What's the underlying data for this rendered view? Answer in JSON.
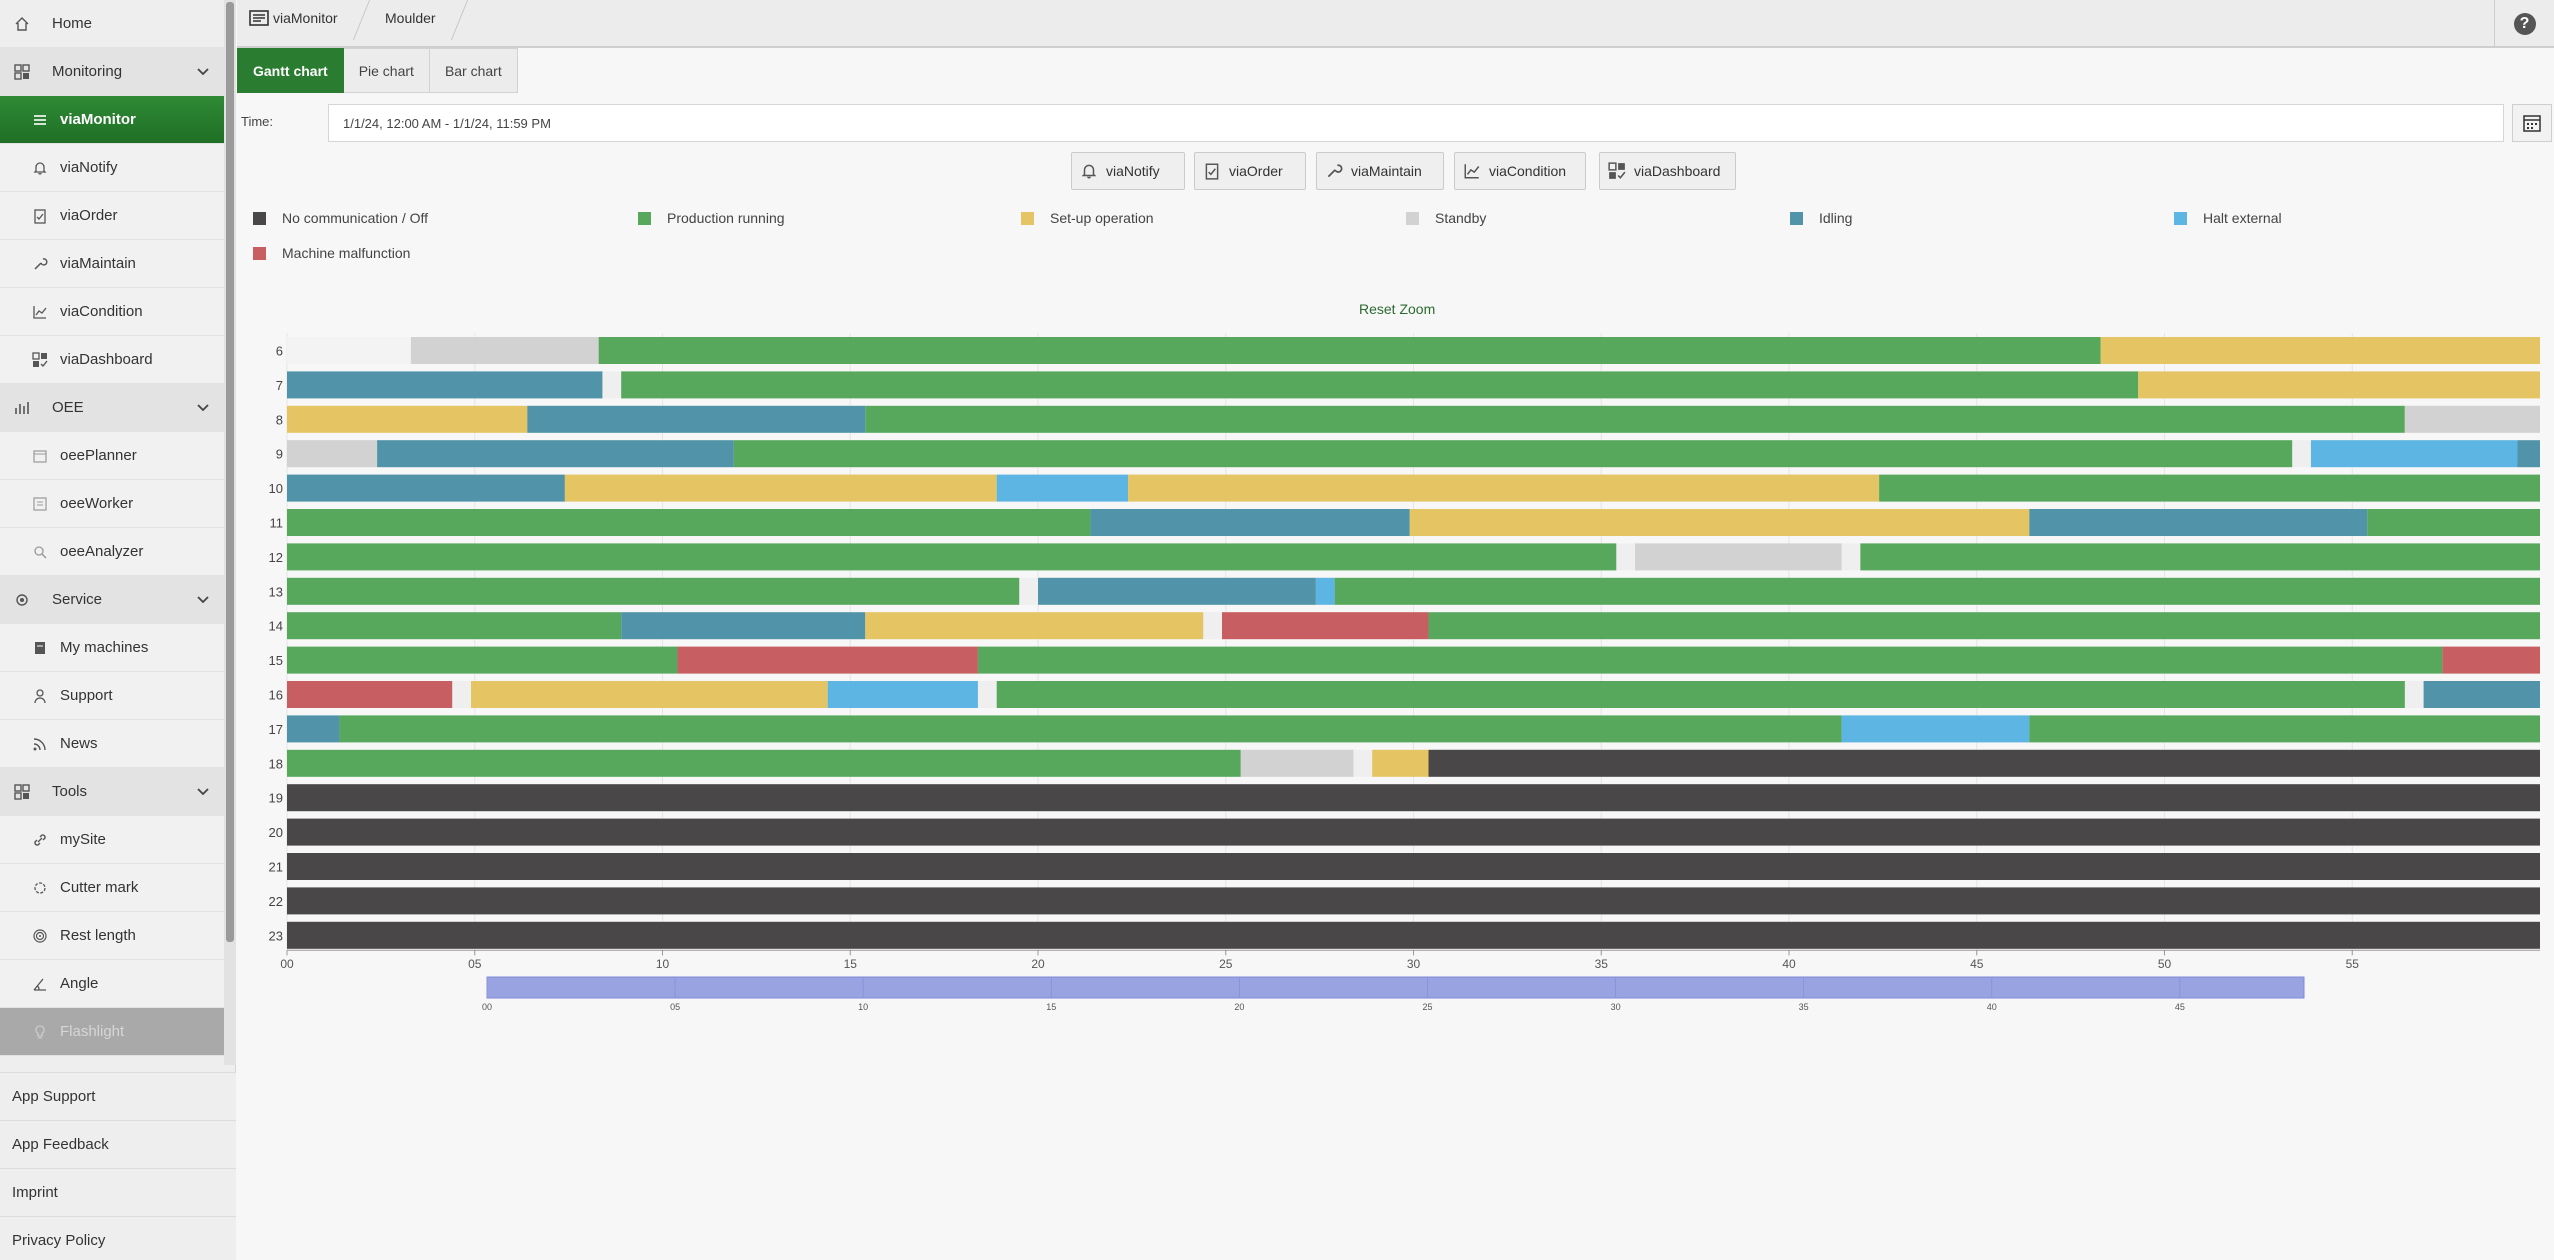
{
  "sidebar": {
    "items": [
      {
        "label": "Home",
        "type": "top",
        "icon": "home-icon"
      },
      {
        "label": "Monitoring",
        "type": "group",
        "icon": "monitoring-icon"
      },
      {
        "label": "viaMonitor",
        "type": "active",
        "icon": "list-icon"
      },
      {
        "label": "viaNotify",
        "type": "sub",
        "icon": "bell-icon"
      },
      {
        "label": "viaOrder",
        "type": "sub",
        "icon": "clipboard-icon"
      },
      {
        "label": "viaMaintain",
        "type": "sub",
        "icon": "wrench-icon"
      },
      {
        "label": "viaCondition",
        "type": "sub",
        "icon": "line-chart-icon"
      },
      {
        "label": "viaDashboard",
        "type": "sub",
        "icon": "dashboard-icon"
      },
      {
        "label": "OEE",
        "type": "group",
        "icon": "oee-icon"
      },
      {
        "label": "oeePlanner",
        "type": "sub",
        "icon": "planner-icon"
      },
      {
        "label": "oeeWorker",
        "type": "sub",
        "icon": "worker-icon"
      },
      {
        "label": "oeeAnalyzer",
        "type": "sub",
        "icon": "analyzer-icon"
      },
      {
        "label": "Service",
        "type": "group",
        "icon": "service-icon"
      },
      {
        "label": "My machines",
        "type": "sub",
        "icon": "machine-icon"
      },
      {
        "label": "Support",
        "type": "sub",
        "icon": "person-icon"
      },
      {
        "label": "News",
        "type": "sub",
        "icon": "rss-icon"
      },
      {
        "label": "Tools",
        "type": "group",
        "icon": "tools-icon"
      },
      {
        "label": "mySite",
        "type": "sub",
        "icon": "link-icon"
      },
      {
        "label": "Cutter mark",
        "type": "sub",
        "icon": "cutter-icon"
      },
      {
        "label": "Rest length",
        "type": "sub",
        "icon": "target-icon"
      },
      {
        "label": "Angle",
        "type": "sub",
        "icon": "angle-icon"
      },
      {
        "label": "Flashlight",
        "type": "disabled",
        "icon": "bulb-icon"
      }
    ],
    "bottom": [
      "App Support",
      "App Feedback",
      "Imprint",
      "Privacy Policy"
    ]
  },
  "breadcrumb": {
    "items": [
      "viaMonitor",
      "Moulder"
    ]
  },
  "tabs": [
    "Gantt chart",
    "Pie chart",
    "Bar chart"
  ],
  "time": {
    "label": "Time:",
    "value": "1/1/24, 12:00 AM - 1/1/24, 11:59 PM"
  },
  "app_buttons": [
    {
      "label": "viaNotify",
      "icon": "bell-icon"
    },
    {
      "label": "viaOrder",
      "icon": "clipboard-icon"
    },
    {
      "label": "viaMaintain",
      "icon": "wrench-icon"
    },
    {
      "label": "viaCondition",
      "icon": "line-chart-icon"
    },
    {
      "label": "viaDashboard",
      "icon": "dashboard-icon"
    }
  ],
  "reset_zoom": "Reset Zoom",
  "colors": {
    "off": "#4a4748",
    "running": "#57a85d",
    "setup": "#e5c463",
    "standby": "#d2d2d2",
    "idling": "#5193a8",
    "halt": "#5cb5e2",
    "malfunction": "#c75f62",
    "navigator": "#9aa3e2",
    "accent": "#2a7d30"
  },
  "chart_data": {
    "type": "gantt",
    "legend": [
      {
        "key": "off",
        "label": "No communication / Off"
      },
      {
        "key": "running",
        "label": "Production running"
      },
      {
        "key": "setup",
        "label": "Set-up operation"
      },
      {
        "key": "standby",
        "label": "Standby"
      },
      {
        "key": "idling",
        "label": "Idling"
      },
      {
        "key": "halt",
        "label": "Halt external"
      },
      {
        "key": "malfunction",
        "label": "Machine malfunction"
      }
    ],
    "x_range": [
      0,
      60
    ],
    "x_ticks": [
      "00",
      "05",
      "10",
      "15",
      "20",
      "25",
      "30",
      "35",
      "40",
      "45",
      "50",
      "55"
    ],
    "navigator_range": [
      0,
      48.3
    ],
    "rows": [
      {
        "label": "6",
        "segments": [
          [
            0,
            3.3,
            "blank"
          ],
          [
            3.3,
            8.3,
            "standby"
          ],
          [
            8.3,
            48.3,
            "running"
          ],
          [
            48.3,
            60,
            "setup"
          ]
        ]
      },
      {
        "label": "7",
        "segments": [
          [
            0,
            8.4,
            "idling"
          ],
          [
            8.9,
            49.3,
            "running"
          ],
          [
            49.3,
            60,
            "setup"
          ]
        ]
      },
      {
        "label": "8",
        "segments": [
          [
            0,
            6.4,
            "setup"
          ],
          [
            6.4,
            15.4,
            "idling"
          ],
          [
            15.4,
            56.4,
            "running"
          ],
          [
            56.4,
            60,
            "standby"
          ]
        ]
      },
      {
        "label": "9",
        "segments": [
          [
            0,
            2.4,
            "standby"
          ],
          [
            2.4,
            11.9,
            "idling"
          ],
          [
            11.9,
            53.4,
            "running"
          ],
          [
            53.9,
            59.4,
            "halt"
          ],
          [
            59.4,
            60,
            "idling"
          ]
        ]
      },
      {
        "label": "10",
        "segments": [
          [
            0,
            7.4,
            "idling"
          ],
          [
            7.4,
            18.9,
            "setup"
          ],
          [
            18.9,
            22.4,
            "halt"
          ],
          [
            22.4,
            42.4,
            "setup"
          ],
          [
            42.4,
            60,
            "running"
          ]
        ]
      },
      {
        "label": "11",
        "segments": [
          [
            0,
            21.4,
            "running"
          ],
          [
            21.4,
            29.9,
            "idling"
          ],
          [
            29.9,
            46.4,
            "setup"
          ],
          [
            46.4,
            55.4,
            "idling"
          ],
          [
            55.4,
            60,
            "running"
          ]
        ]
      },
      {
        "label": "12",
        "segments": [
          [
            0,
            35.4,
            "running"
          ],
          [
            35.9,
            41.4,
            "standby"
          ],
          [
            41.9,
            60,
            "running"
          ]
        ]
      },
      {
        "label": "13",
        "segments": [
          [
            0,
            19.5,
            "running"
          ],
          [
            20.0,
            27.4,
            "idling"
          ],
          [
            27.4,
            27.9,
            "halt"
          ],
          [
            27.9,
            60,
            "running"
          ]
        ]
      },
      {
        "label": "14",
        "segments": [
          [
            0,
            8.9,
            "running"
          ],
          [
            8.9,
            15.4,
            "idling"
          ],
          [
            15.4,
            24.4,
            "setup"
          ],
          [
            24.9,
            30.4,
            "malfunction"
          ],
          [
            30.4,
            60,
            "running"
          ]
        ]
      },
      {
        "label": "15",
        "segments": [
          [
            0,
            10.4,
            "running"
          ],
          [
            10.4,
            18.4,
            "malfunction"
          ],
          [
            18.4,
            57.4,
            "running"
          ],
          [
            57.4,
            60,
            "malfunction"
          ]
        ]
      },
      {
        "label": "16",
        "segments": [
          [
            0,
            4.4,
            "malfunction"
          ],
          [
            4.9,
            14.4,
            "setup"
          ],
          [
            14.4,
            18.4,
            "halt"
          ],
          [
            18.9,
            56.4,
            "running"
          ],
          [
            56.9,
            60,
            "idling"
          ]
        ]
      },
      {
        "label": "17",
        "segments": [
          [
            0,
            1.4,
            "idling"
          ],
          [
            1.4,
            41.4,
            "running"
          ],
          [
            41.4,
            46.4,
            "halt"
          ],
          [
            46.4,
            60,
            "running"
          ]
        ]
      },
      {
        "label": "18",
        "segments": [
          [
            0,
            25.4,
            "running"
          ],
          [
            25.4,
            28.4,
            "standby"
          ],
          [
            28.9,
            30.4,
            "setup"
          ],
          [
            30.4,
            60,
            "off"
          ]
        ]
      },
      {
        "label": "19",
        "segments": [
          [
            0,
            60,
            "off"
          ]
        ]
      },
      {
        "label": "20",
        "segments": [
          [
            0,
            60,
            "off"
          ]
        ]
      },
      {
        "label": "21",
        "segments": [
          [
            0,
            60,
            "off"
          ]
        ]
      },
      {
        "label": "22",
        "segments": [
          [
            0,
            60,
            "off"
          ]
        ]
      },
      {
        "label": "23",
        "segments": [
          [
            0,
            60,
            "off"
          ]
        ]
      }
    ]
  }
}
